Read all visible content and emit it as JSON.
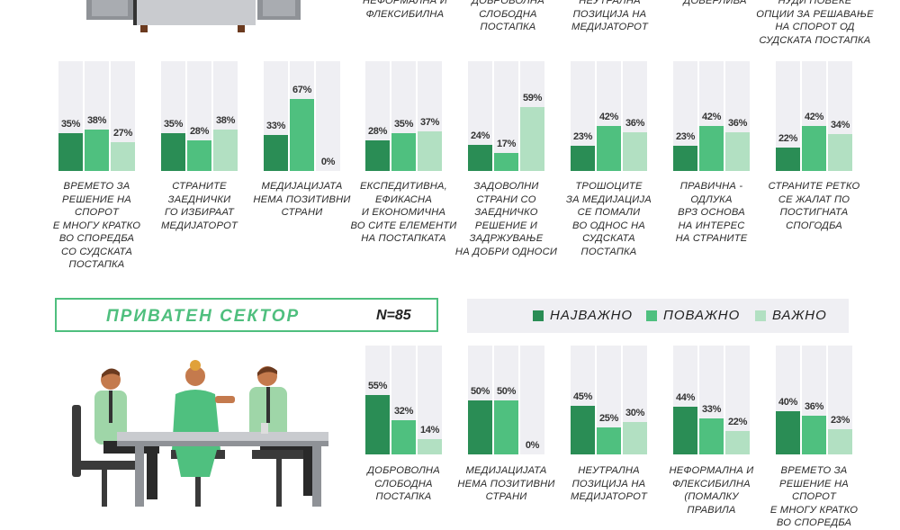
{
  "colors": {
    "most_important": "#2a8d55",
    "more_important": "#4fc07f",
    "important": "#b2e0c2",
    "bar_background": "#efeff3",
    "accent": "#4fbf7e"
  },
  "top_cut_labels": [
    "НЕФОРМАЛНА И\nФЛЕКСИБИЛНА",
    "ДОБРОВОЛНА\nСЛОБОДНА\nПОСТАПКА",
    "НЕУТРАЛНА\nПОЗИЦИЈА НА\nМЕДИЈАТОРОТ",
    "ДОВЕРЛИВА",
    "НУДИ ПОВЕЌЕ\nОПЦИИ ЗА РЕШАВАЊЕ\nНА СПОРОТ ОД\nСУДСКАТА ПОСТАПКА"
  ],
  "sector": {
    "title": "ПРИВАТЕН СЕКТОР",
    "n": "N=85"
  },
  "legend": {
    "items": [
      {
        "label": "НАЈВАЖНО",
        "color": "#2a8d55"
      },
      {
        "label": "ПОВАЖНО",
        "color": "#4fc07f"
      },
      {
        "label": "ВАЖНО",
        "color": "#b2e0c2"
      }
    ]
  },
  "chart_data": [
    {
      "type": "bar",
      "series": [
        "НАЈВАЖНО",
        "ПОВАЖНО",
        "ВАЖНО"
      ],
      "ylim": [
        0,
        100
      ],
      "groups": [
        {
          "label": "ВРЕМЕТО ЗА\nРЕШЕНИЕ НА СПОРОТ\nЕ МНОГУ КРАТКО\nВО СПОРЕДБА\nСО СУДСКАТА\nПОСТАПКА",
          "values": [
            35,
            38,
            27
          ]
        },
        {
          "label": "СТРАНИТЕ\nЗАЕДНИЧКИ\nГО ИЗБИРААТ\nМЕДИЈАТОРОТ",
          "values": [
            35,
            28,
            38
          ]
        },
        {
          "label": "МЕДИЈАЦИЈАТА\nНЕМА ПОЗИТИВНИ\nСТРАНИ",
          "values": [
            33,
            67,
            0
          ]
        },
        {
          "label": "ЕКСПЕДИТИВНА,\nЕФИКАСНА\nИ ЕКОНОМИЧНА\nВО СИТЕ ЕЛЕМЕНТИ\nНА ПОСТАПКАТА",
          "values": [
            28,
            35,
            37
          ]
        },
        {
          "label": "ЗАДОВОЛНИ\nСТРАНИ СО\nЗАЕДНИЧКО\nРЕШЕНИЕ И\nЗАДРЖУВАЊЕ\nНА ДОБРИ ОДНОСИ",
          "values": [
            24,
            17,
            59
          ]
        },
        {
          "label": "ТРОШОЦИТЕ\nЗА МЕДИЈАЦИЈА\nСЕ ПОМАЛИ\nВО ОДНОС НА\nСУДСКАТА\nПОСТАПКА",
          "values": [
            23,
            42,
            36
          ]
        },
        {
          "label": "ПРАВИЧНА -\nОДЛУКА\nВРЗ ОСНОВА\nНА ИНТЕРЕС\nНА СТРАНИТЕ",
          "values": [
            23,
            42,
            36
          ]
        },
        {
          "label": "СТРАНИТЕ РЕТКО\nСЕ ЖАЛАТ ПО\nПОСТИГНАТА\nСПОГОДБА",
          "values": [
            22,
            42,
            34
          ]
        }
      ]
    },
    {
      "type": "bar",
      "series": [
        "НАЈВАЖНО",
        "ПОВАЖНО",
        "ВАЖНО"
      ],
      "ylim": [
        0,
        100
      ],
      "groups": [
        {
          "label": "ДОБРОВОЛНА\nСЛОБОДНА\nПОСТАПКА",
          "values": [
            55,
            32,
            14
          ]
        },
        {
          "label": "МЕДИЈАЦИЈАТА\nНЕМА ПОЗИТИВНИ\nСТРАНИ",
          "values": [
            50,
            50,
            0
          ]
        },
        {
          "label": "НЕУТРАЛНА\nПОЗИЦИЈА НА\nМЕДИЈАТОРОТ",
          "values": [
            45,
            25,
            30
          ]
        },
        {
          "label": "НЕФОРМАЛНА И\nФЛЕКСИБИЛНА\n(ПОМАЛКУ\nПРАВИЛА",
          "values": [
            44,
            33,
            22
          ]
        },
        {
          "label": "ВРЕМЕТО ЗА\nРЕШЕНИЕ НА СПОРОТ\nЕ МНОГУ КРАТКО\nВО СПОРЕДБА",
          "values": [
            40,
            36,
            23
          ]
        }
      ]
    }
  ]
}
